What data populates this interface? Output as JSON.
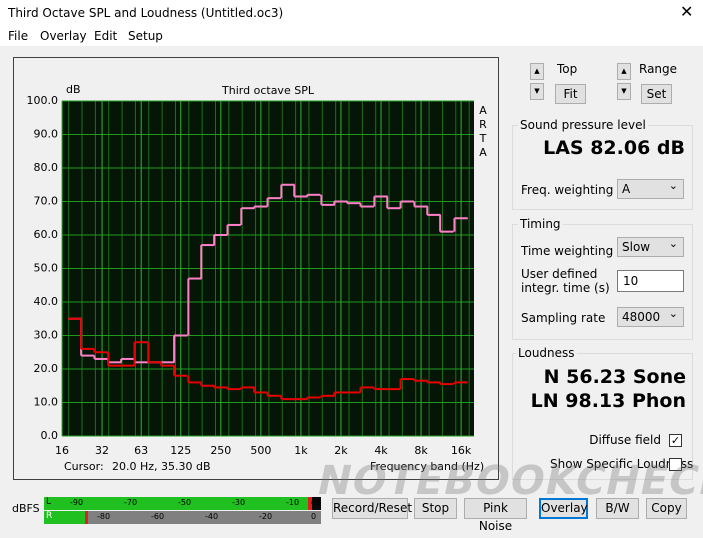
{
  "window": {
    "title": "Third Octave SPL and Loudness (Untitled.oc3)"
  },
  "menu": [
    "File",
    "Overlay",
    "Edit",
    "Setup"
  ],
  "plot": {
    "type": "line",
    "title": "Third octave SPL",
    "y_unit": "dB",
    "side_label": "ARTA",
    "x_label": "Frequency band (Hz)",
    "cursor_label": "Cursor:",
    "cursor_value": "20.0 Hz, 35.30 dB",
    "x": [
      20,
      25,
      31.5,
      40,
      50,
      63,
      80,
      100,
      125,
      160,
      200,
      250,
      315,
      400,
      500,
      630,
      800,
      1000,
      1250,
      1600,
      2000,
      2500,
      3150,
      4000,
      5000,
      6300,
      8000,
      10000,
      12500,
      16000
    ],
    "series": [
      {
        "color": "#ff80c8",
        "values": [
          35,
          24,
          23,
          22,
          23,
          22,
          22,
          22,
          30,
          47,
          57,
          60,
          63,
          68,
          68.5,
          71,
          75,
          71.5,
          72,
          69,
          70,
          69.5,
          68.5,
          71.5,
          68,
          70,
          68.5,
          66,
          61,
          65
        ]
      },
      {
        "color": "#e80000",
        "values": [
          35,
          26,
          25,
          21,
          21,
          28,
          22,
          21,
          18,
          16,
          15,
          14.5,
          14,
          14.5,
          13,
          12,
          11,
          11,
          11.5,
          12,
          13,
          13,
          14.5,
          14,
          14,
          17,
          16.5,
          16,
          15.5,
          16
        ]
      }
    ],
    "xlog": true,
    "xlim": [
      16,
      20000
    ],
    "xticks": [
      16,
      32,
      63,
      125,
      250,
      500,
      {
        "value": 1000,
        "label": "1k"
      },
      {
        "value": 2000,
        "label": "2k"
      },
      {
        "value": 4000,
        "label": "4k"
      },
      {
        "value": 8000,
        "label": "8k"
      },
      {
        "value": 16000,
        "label": "16k"
      }
    ],
    "ylim": [
      0,
      100
    ],
    "yticks": [
      {
        "value": 0,
        "label": "0.0"
      },
      {
        "value": 10,
        "label": "10.0"
      },
      {
        "value": 20,
        "label": "20.0"
      },
      {
        "value": 30,
        "label": "30.0"
      },
      {
        "value": 40,
        "label": "40.0"
      },
      {
        "value": 50,
        "label": "50.0"
      },
      {
        "value": 60,
        "label": "60.0"
      },
      {
        "value": 70,
        "label": "70.0"
      },
      {
        "value": 80,
        "label": "80.0"
      },
      {
        "value": 90,
        "label": "90.0"
      },
      {
        "value": 100,
        "label": "100.0"
      }
    ],
    "grid": true
  },
  "controls": {
    "top_label": "Top",
    "fit_button": "Fit",
    "range_label": "Range",
    "set_button": "Set"
  },
  "spl": {
    "group": "Sound pressure level",
    "reading": "LAS 82.06 dB",
    "freq_weighting_label": "Freq. weighting",
    "freq_weighting": "A"
  },
  "timing": {
    "group": "Timing",
    "time_weighting_label": "Time weighting",
    "time_weighting": "Slow",
    "integr_label": [
      "User defined",
      "integr. time (s)"
    ],
    "integr_value": "10",
    "sampling_label": "Sampling rate",
    "sampling_rate": "48000"
  },
  "loudness": {
    "group": "Loudness",
    "n": "N 56.23 Sone",
    "ln": "LN 98.13 Phon",
    "diffuse": "Diffuse field",
    "specific": "Show Specific Loudness"
  },
  "meter": {
    "label": "dBFS",
    "channels": [
      "L",
      "R"
    ],
    "top_scale": [
      "-90",
      "-70",
      "-50",
      "-30",
      "-10",
      "dB"
    ],
    "bottom_scale": [
      "-80",
      "-60",
      "-40",
      "-20",
      "0"
    ]
  },
  "buttons": [
    "Record/Reset",
    "Stop",
    "Pink Noise",
    "Overlay",
    "B/W",
    "Copy"
  ],
  "watermark": "NOTEBOOKCHECK"
}
